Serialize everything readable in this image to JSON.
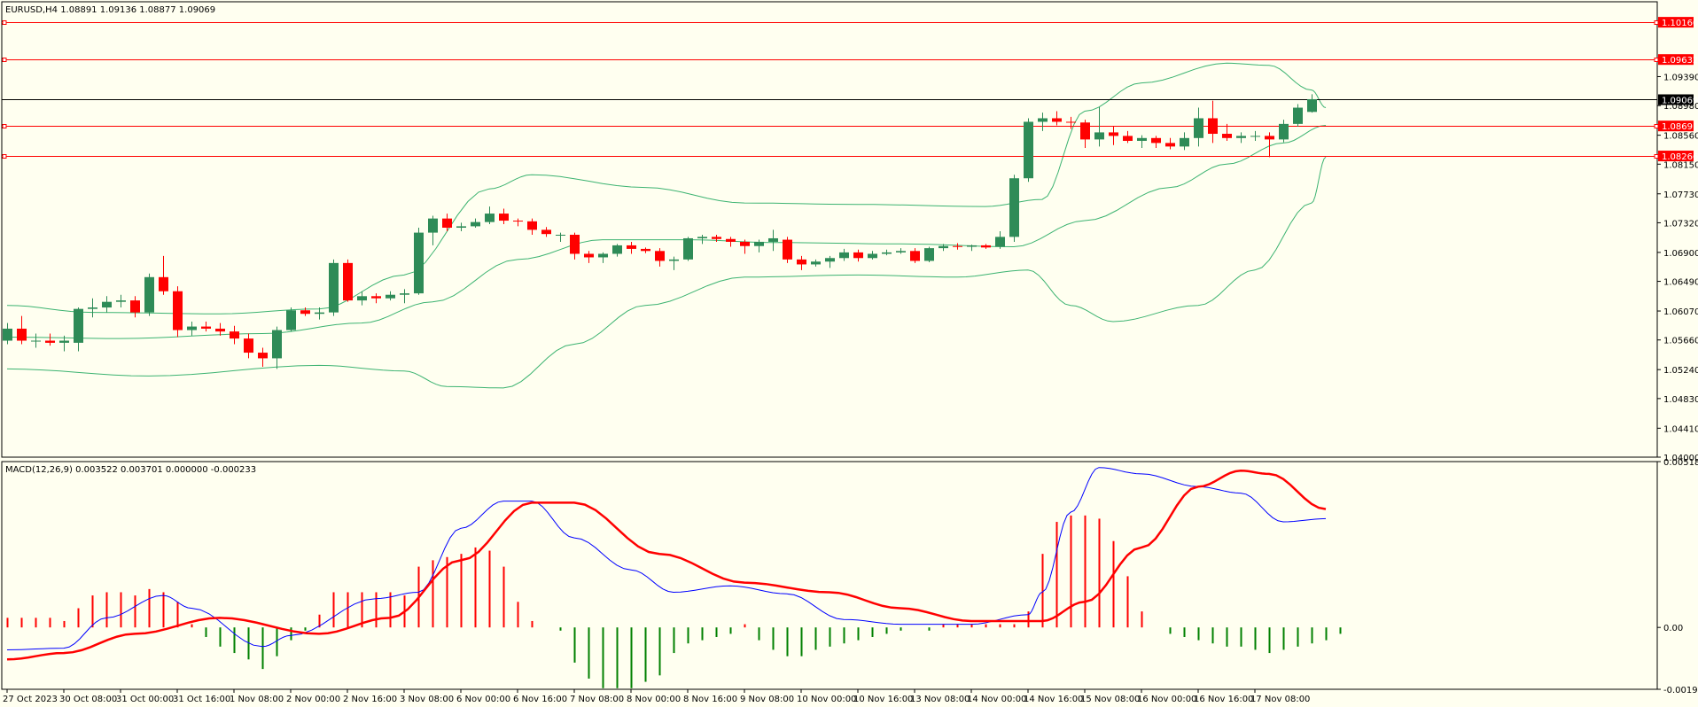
{
  "header": {
    "symbol_info": "EURUSD,H4  1.08891 1.09136 1.08877 1.09069",
    "indicator_info": "MACD(12,26,9) 0.003522 0.003701 0.000000 -0.000233"
  },
  "colors": {
    "background": "#fffff0",
    "bull_candle": "#2e8b57",
    "bear_candle": "#ff0000",
    "bollinger": "#3cb371",
    "level_line": "#ff0000",
    "macd_line": "#0000ff",
    "signal_line": "#ff0000",
    "hist_up": "#ff0000",
    "hist_down": "#008000",
    "price_marker": "#000000"
  },
  "chart_data": [
    {
      "type": "candlestick",
      "title": "EURUSD,H4",
      "ohlc_last": {
        "open": 1.08891,
        "high": 1.09136,
        "low": 1.08877,
        "close": 1.09069
      },
      "ylim": [
        1.04,
        1.1045
      ],
      "y_ticks": [
        "1.09390",
        "1.08980",
        "1.08560",
        "1.08150",
        "1.07730",
        "1.07320",
        "1.06900",
        "1.06490",
        "1.06070",
        "1.05660",
        "1.05240",
        "1.04830",
        "1.04410",
        "1.04000"
      ],
      "x_tick_labels": [
        "27 Oct 2023",
        "30 Oct 08:00",
        "31 Oct 00:00",
        "31 Oct 16:00",
        "1 Nov 08:00",
        "2 Nov 00:00",
        "2 Nov 16:00",
        "3 Nov 08:00",
        "6 Nov 00:00",
        "6 Nov 16:00",
        "7 Nov 08:00",
        "8 Nov 00:00",
        "8 Nov 16:00",
        "9 Nov 08:00",
        "10 Nov 00:00",
        "10 Nov 16:00",
        "13 Nov 08:00",
        "14 Nov 00:00",
        "14 Nov 16:00",
        "15 Nov 08:00",
        "16 Nov 00:00",
        "16 Nov 16:00",
        "17 Nov 08:00"
      ],
      "levels": [
        "1.10160",
        "1.09632",
        "1.08691",
        "1.08266"
      ],
      "current_price": "1.09069",
      "grid": false,
      "candles": [
        [
          1.0565,
          1.059,
          1.056,
          1.0582
        ],
        [
          1.0582,
          1.06,
          1.056,
          1.0565
        ],
        [
          1.0565,
          1.0575,
          1.0555,
          1.0565
        ],
        [
          1.0565,
          1.0575,
          1.0558,
          1.0562
        ],
        [
          1.0562,
          1.0572,
          1.055,
          1.0565
        ],
        [
          1.0562,
          1.0612,
          1.055,
          1.061
        ],
        [
          1.061,
          1.0625,
          1.0598,
          1.0612
        ],
        [
          1.0612,
          1.0628,
          1.0605,
          1.062
        ],
        [
          1.062,
          1.063,
          1.0612,
          1.0622
        ],
        [
          1.0622,
          1.0628,
          1.0598,
          1.0605
        ],
        [
          1.0605,
          1.066,
          1.06,
          1.0655
        ],
        [
          1.0655,
          1.0685,
          1.063,
          1.0635
        ],
        [
          1.0635,
          1.0642,
          1.057,
          1.058
        ],
        [
          1.058,
          1.0592,
          1.0572,
          1.0585
        ],
        [
          1.0585,
          1.0592,
          1.0578,
          1.0582
        ],
        [
          1.0582,
          1.059,
          1.0572,
          1.0578
        ],
        [
          1.0578,
          1.0586,
          1.056,
          1.0568
        ],
        [
          1.0568,
          1.0575,
          1.054,
          1.0548
        ],
        [
          1.0548,
          1.0555,
          1.0528,
          1.054
        ],
        [
          1.054,
          1.0585,
          1.0525,
          1.058
        ],
        [
          1.058,
          1.0612,
          1.0578,
          1.0608
        ],
        [
          1.0608,
          1.0612,
          1.06,
          1.0603
        ],
        [
          1.0603,
          1.0612,
          1.0595,
          1.0605
        ],
        [
          1.0605,
          1.068,
          1.06,
          1.0675
        ],
        [
          1.0675,
          1.068,
          1.062,
          1.0622
        ],
        [
          1.0622,
          1.0635,
          1.0615,
          1.0628
        ],
        [
          1.0628,
          1.0632,
          1.0618,
          1.0625
        ],
        [
          1.0625,
          1.0635,
          1.0622,
          1.063
        ],
        [
          1.063,
          1.0638,
          1.0618,
          1.0632
        ],
        [
          1.0632,
          1.0725,
          1.063,
          1.0718
        ],
        [
          1.0718,
          1.0742,
          1.07,
          1.0738
        ],
        [
          1.0738,
          1.0745,
          1.072,
          1.0725
        ],
        [
          1.0725,
          1.0732,
          1.072,
          1.0727
        ],
        [
          1.0727,
          1.0738,
          1.0725,
          1.0733
        ],
        [
          1.0733,
          1.0755,
          1.073,
          1.0745
        ],
        [
          1.0745,
          1.0752,
          1.073,
          1.0735
        ],
        [
          1.0735,
          1.0738,
          1.0727,
          1.0734
        ],
        [
          1.0734,
          1.0738,
          1.0715,
          1.0722
        ],
        [
          1.0722,
          1.0726,
          1.0712,
          1.0716
        ],
        [
          1.0715,
          1.0718,
          1.0705,
          1.0715
        ],
        [
          1.0715,
          1.0718,
          1.068,
          1.0688
        ],
        [
          1.0688,
          1.0692,
          1.0675,
          1.0683
        ],
        [
          1.0683,
          1.069,
          1.0675,
          1.0688
        ],
        [
          1.0688,
          1.0702,
          1.0684,
          1.07
        ],
        [
          1.07,
          1.0705,
          1.0688,
          1.0695
        ],
        [
          1.0695,
          1.0697,
          1.0689,
          1.0692
        ],
        [
          1.0692,
          1.0696,
          1.067,
          1.0678
        ],
        [
          1.0678,
          1.0684,
          1.0665,
          1.068
        ],
        [
          1.068,
          1.0712,
          1.0678,
          1.071
        ],
        [
          1.071,
          1.0715,
          1.0702,
          1.0712
        ],
        [
          1.0712,
          1.0715,
          1.0705,
          1.0709
        ],
        [
          1.0709,
          1.0712,
          1.0698,
          1.0705
        ],
        [
          1.0705,
          1.0708,
          1.0688,
          1.0699
        ],
        [
          1.0699,
          1.0708,
          1.069,
          1.0705
        ],
        [
          1.0705,
          1.0722,
          1.0692,
          1.071
        ],
        [
          1.0708,
          1.0712,
          1.0675,
          1.068
        ],
        [
          1.068,
          1.0685,
          1.0665,
          1.0673
        ],
        [
          1.0673,
          1.068,
          1.067,
          1.0677
        ],
        [
          1.0677,
          1.0685,
          1.0668,
          1.0682
        ],
        [
          1.0682,
          1.0695,
          1.0678,
          1.069
        ],
        [
          1.069,
          1.0694,
          1.0677,
          1.0682
        ],
        [
          1.0682,
          1.0692,
          1.068,
          1.0688
        ],
        [
          1.0688,
          1.0694,
          1.0686,
          1.069
        ],
        [
          1.069,
          1.0696,
          1.0688,
          1.0692
        ],
        [
          1.0692,
          1.0696,
          1.0675,
          1.0678
        ],
        [
          1.0678,
          1.0698,
          1.0676,
          1.0696
        ],
        [
          1.0696,
          1.0702,
          1.0692,
          1.0699
        ],
        [
          1.0699,
          1.0703,
          1.0694,
          1.0698
        ],
        [
          1.0698,
          1.0701,
          1.0692,
          1.07
        ],
        [
          1.07,
          1.0702,
          1.0695,
          1.0697
        ],
        [
          1.0698,
          1.072,
          1.0695,
          1.0712
        ],
        [
          1.0712,
          1.08,
          1.0705,
          1.0795
        ],
        [
          1.0795,
          1.088,
          1.079,
          1.0875
        ],
        [
          1.0875,
          1.0888,
          1.0862,
          1.088
        ],
        [
          1.088,
          1.089,
          1.087,
          1.0875
        ],
        [
          1.0875,
          1.0882,
          1.0865,
          1.0874
        ],
        [
          1.0874,
          1.0878,
          1.0838,
          1.085
        ],
        [
          1.085,
          1.0896,
          1.084,
          1.086
        ],
        [
          1.086,
          1.0868,
          1.0842,
          1.0855
        ],
        [
          1.0855,
          1.0862,
          1.0845,
          1.0848
        ],
        [
          1.0848,
          1.0856,
          1.0838,
          1.0852
        ],
        [
          1.0852,
          1.0855,
          1.0838,
          1.0845
        ],
        [
          1.0845,
          1.0852,
          1.0836,
          1.084
        ],
        [
          1.084,
          1.086,
          1.0835,
          1.0852
        ],
        [
          1.0852,
          1.0895,
          1.084,
          1.088
        ],
        [
          1.088,
          1.0905,
          1.0845,
          1.0858
        ],
        [
          1.0858,
          1.0872,
          1.0848,
          1.0852
        ],
        [
          1.0852,
          1.086,
          1.0845,
          1.0855
        ],
        [
          1.0855,
          1.0862,
          1.0848,
          1.0855
        ],
        [
          1.0855,
          1.086,
          1.0825,
          1.085
        ],
        [
          1.085,
          1.0878,
          1.0846,
          1.0872
        ],
        [
          1.0872,
          1.09,
          1.0868,
          1.0895
        ],
        [
          1.0889,
          1.0914,
          1.0888,
          1.0907
        ]
      ],
      "bollinger_bands": {
        "upper": [
          [
            0,
            1.0615
          ],
          [
            6,
            1.0605
          ],
          [
            15,
            1.0603
          ],
          [
            22,
            1.061
          ],
          [
            28,
            1.0658
          ],
          [
            34,
            1.078
          ],
          [
            37,
            1.08
          ],
          [
            45,
            1.0782
          ],
          [
            52,
            1.076
          ],
          [
            60,
            1.0758
          ],
          [
            69,
            1.0755
          ],
          [
            73,
            1.0765
          ],
          [
            76,
            1.089
          ],
          [
            80,
            1.093
          ],
          [
            86,
            1.0958
          ],
          [
            89,
            1.0955
          ],
          [
            92,
            1.092
          ],
          [
            93,
            1.0895
          ]
        ],
        "middle": [
          [
            0,
            1.057
          ],
          [
            8,
            1.0568
          ],
          [
            18,
            1.0575
          ],
          [
            25,
            1.059
          ],
          [
            30,
            1.062
          ],
          [
            36,
            1.068
          ],
          [
            42,
            1.0708
          ],
          [
            48,
            1.0708
          ],
          [
            54,
            1.0704
          ],
          [
            63,
            1.0702
          ],
          [
            71,
            1.0698
          ],
          [
            76,
            1.0735
          ],
          [
            82,
            1.0782
          ],
          [
            86,
            1.0815
          ],
          [
            90,
            1.0845
          ],
          [
            93,
            1.087
          ]
        ],
        "lower": [
          [
            0,
            1.0525
          ],
          [
            10,
            1.0515
          ],
          [
            22,
            1.053
          ],
          [
            28,
            1.0522
          ],
          [
            31,
            1.05
          ],
          [
            35,
            1.0498
          ],
          [
            40,
            1.056
          ],
          [
            45,
            1.0615
          ],
          [
            52,
            1.0655
          ],
          [
            60,
            1.0658
          ],
          [
            67,
            1.0655
          ],
          [
            72,
            1.0665
          ],
          [
            75,
            1.0615
          ],
          [
            78,
            1.0592
          ],
          [
            84,
            1.0615
          ],
          [
            88,
            1.0665
          ],
          [
            92,
            1.076
          ],
          [
            93,
            1.0825
          ]
        ]
      }
    },
    {
      "type": "line",
      "title": "MACD(12,26,9)",
      "ylim": [
        -0.001934,
        0.005185
      ],
      "y_ticks": [
        "0.005185",
        "0.00",
        "-0.001934"
      ],
      "series": [
        {
          "name": "MACD",
          "points": [
            [
              0,
              -0.0007
            ],
            [
              4,
              -0.00065
            ],
            [
              7,
              0.0003
            ],
            [
              11,
              0.001
            ],
            [
              13,
              0.0006
            ],
            [
              18,
              -0.0006
            ],
            [
              20,
              -0.00025
            ],
            [
              26,
              0.0009
            ],
            [
              29,
              0.0011
            ],
            [
              32,
              0.0031
            ],
            [
              35,
              0.00395
            ],
            [
              37,
              0.00395
            ],
            [
              40,
              0.0028
            ],
            [
              44,
              0.0018
            ],
            [
              47,
              0.0011
            ],
            [
              51,
              0.0013
            ],
            [
              55,
              0.00105
            ],
            [
              59,
              0.00025
            ],
            [
              63,
              0.0001
            ],
            [
              68,
              0.0001
            ],
            [
              72,
              0.0004
            ],
            [
              73,
              0.0011
            ],
            [
              75,
              0.0036
            ],
            [
              77,
              0.005
            ],
            [
              80,
              0.0048
            ],
            [
              84,
              0.0044
            ],
            [
              87,
              0.0042
            ],
            [
              90,
              0.0033
            ],
            [
              93,
              0.0034
            ]
          ]
        },
        {
          "name": "Signal",
          "points": [
            [
              0,
              -0.001
            ],
            [
              4,
              -0.0008
            ],
            [
              9,
              -0.0002
            ],
            [
              15,
              0.0003
            ],
            [
              22,
              -0.0002
            ],
            [
              27,
              0.0003
            ],
            [
              32,
              0.0021
            ],
            [
              37,
              0.0039
            ],
            [
              40,
              0.0039
            ],
            [
              46,
              0.0023
            ],
            [
              52,
              0.0014
            ],
            [
              58,
              0.0011
            ],
            [
              63,
              0.0006
            ],
            [
              68,
              0.0002
            ],
            [
              73,
              0.0002
            ],
            [
              76,
              0.0008
            ],
            [
              80,
              0.0025
            ],
            [
              84,
              0.0044
            ],
            [
              87,
              0.0049
            ],
            [
              89,
              0.0048
            ],
            [
              93,
              0.0037
            ]
          ]
        }
      ],
      "histogram": [
        0.0003,
        0.0003,
        0.0003,
        0.0003,
        0.0002,
        0.0006,
        0.001,
        0.0011,
        0.0011,
        0.001,
        0.0012,
        0.0011,
        0.0008,
        0.0001,
        -0.0003,
        -0.0006,
        -0.0008,
        -0.001,
        -0.0013,
        -0.0009,
        -0.0004,
        -0.0001,
        0.0004,
        0.0011,
        0.0011,
        0.0011,
        0.0011,
        0.0011,
        0.001,
        0.0019,
        0.0021,
        0.0022,
        0.0023,
        0.0025,
        0.0024,
        0.0019,
        0.0008,
        0.0002,
        0.0,
        -0.0001,
        -0.0011,
        -0.0016,
        -0.0019,
        -0.0019,
        -0.0019,
        -0.0017,
        -0.0015,
        -0.0008,
        -0.0005,
        -0.0004,
        -0.0003,
        -0.0002,
        0.0001,
        -0.0004,
        -0.0007,
        -0.0009,
        -0.0009,
        -0.0007,
        -0.0006,
        -0.0005,
        -0.0004,
        -0.0003,
        -0.0002,
        -0.0001,
        0.0,
        -0.0001,
        0.0001,
        0.0001,
        0.0001,
        0.0001,
        0.0001,
        0.0001,
        0.0005,
        0.0023,
        0.0033,
        0.0035,
        0.0035,
        0.0034,
        0.0027,
        0.0016,
        0.0005,
        0.0,
        -0.0002,
        -0.0003,
        -0.0004,
        -0.0005,
        -0.0006,
        -0.0006,
        -0.0007,
        -0.0008,
        -0.0007,
        -0.0006,
        -0.0005,
        -0.0004,
        -0.0002
      ]
    }
  ]
}
